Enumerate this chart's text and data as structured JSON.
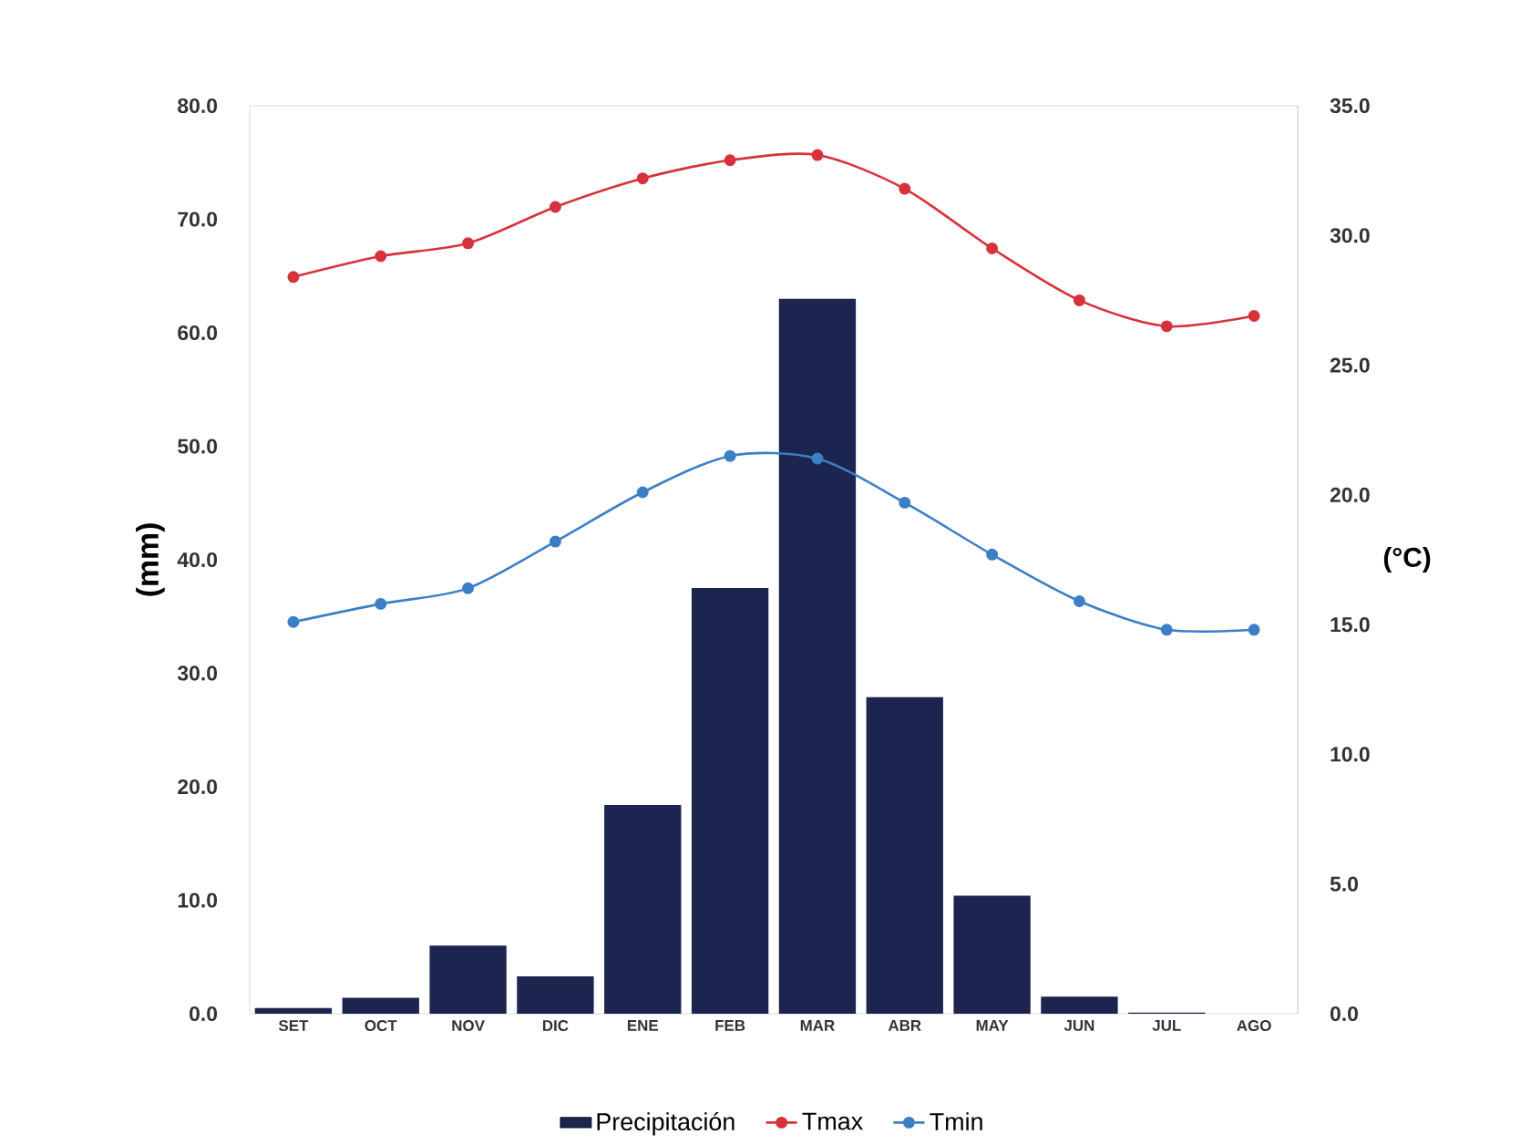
{
  "chart_data": {
    "type": "bar",
    "categories": [
      "SET",
      "OCT",
      "NOV",
      "DIC",
      "ENE",
      "FEB",
      "MAR",
      "ABR",
      "MAY",
      "JUN",
      "JUL",
      "AGO"
    ],
    "series": [
      {
        "name": "Precipitación",
        "axis": "y",
        "color": "#1b2550",
        "values": [
          0.5,
          1.4,
          6.0,
          3.3,
          18.4,
          37.5,
          63.0,
          27.9,
          10.4,
          1.5,
          0.1,
          0.0
        ]
      },
      {
        "name": "Tmax",
        "type": "line",
        "axis": "y2",
        "color": "#d7323c",
        "values": [
          28.4,
          29.2,
          29.7,
          31.1,
          32.2,
          32.9,
          33.1,
          31.8,
          29.5,
          27.5,
          26.5,
          26.9
        ]
      },
      {
        "name": "Tmin",
        "type": "line",
        "axis": "y2",
        "color": "#3b7fc6",
        "values": [
          15.1,
          15.8,
          16.4,
          18.2,
          20.1,
          21.5,
          21.4,
          19.7,
          17.7,
          15.9,
          14.8,
          14.8
        ]
      }
    ],
    "ylabel": "(mm)",
    "y2label": "(°C)",
    "ylim": [
      0,
      80
    ],
    "yticks": [
      {
        "value": 0,
        "label": "0.0"
      },
      {
        "value": 10,
        "label": "10.0"
      },
      {
        "value": 20,
        "label": "20.0"
      },
      {
        "value": 30,
        "label": "30.0"
      },
      {
        "value": 40,
        "label": "40.0"
      },
      {
        "value": 50,
        "label": "50.0"
      },
      {
        "value": 60,
        "label": "60.0"
      },
      {
        "value": 70,
        "label": "70.0"
      },
      {
        "value": 80,
        "label": "80.0"
      }
    ],
    "y2lim": [
      0,
      35
    ],
    "y2ticks": [
      {
        "value": 0,
        "label": "0.0"
      },
      {
        "value": 5,
        "label": "5.0"
      },
      {
        "value": 10,
        "label": "10.0"
      },
      {
        "value": 15,
        "label": "15.0"
      },
      {
        "value": 20,
        "label": "20.0"
      },
      {
        "value": 25,
        "label": "25.0"
      },
      {
        "value": 30,
        "label": "30.0"
      },
      {
        "value": 35,
        "label": "35.0"
      }
    ],
    "marker": "circle",
    "line_style": "solid",
    "grid": false,
    "legend": "bottom"
  }
}
